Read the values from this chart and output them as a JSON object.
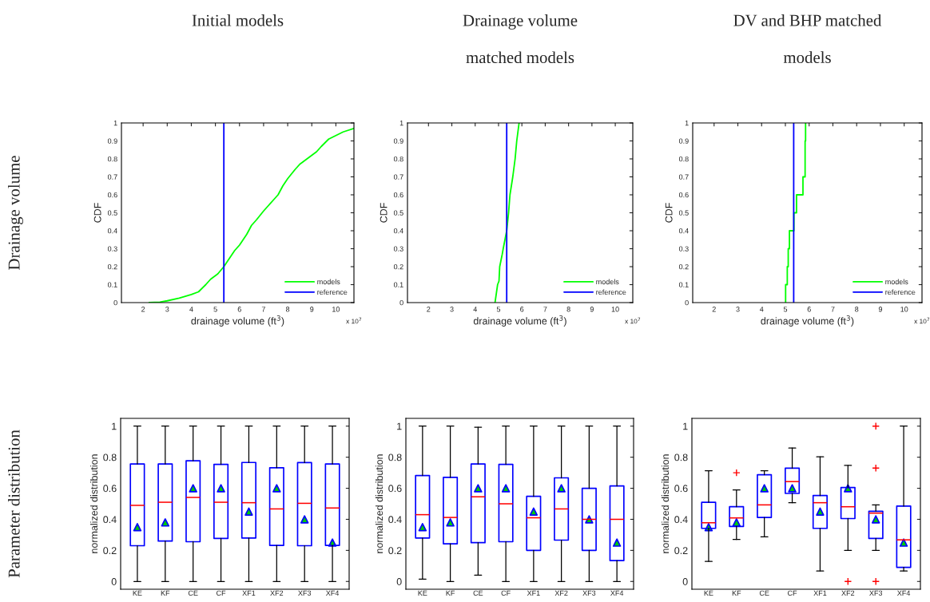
{
  "chart_data": [
    {
      "type": "line",
      "title": "Initial models",
      "xlabel": "drainage volume (ft$^{3}$)",
      "ylabel": "CDF",
      "annotations": [
        "Drainage volume",
        "x 10$^{7}$"
      ],
      "series": [
        {
          "name": "models",
          "color": "#00ff00",
          "x": [
            2.25,
            2.7,
            3,
            3.5,
            4,
            4.3,
            4.6,
            4.8,
            5.1,
            5.35,
            5.6,
            5.8,
            6,
            6.3,
            6.5,
            6.7,
            7,
            7.2,
            7.4,
            7.6,
            7.8,
            8,
            8.3,
            8.5,
            8.8,
            9,
            9.2,
            9.4,
            9.7,
            10,
            10.3,
            10.75
          ],
          "values": [
            0,
            0.003,
            0.01,
            0.025,
            0.045,
            0.06,
            0.1,
            0.13,
            0.16,
            0.2,
            0.25,
            0.29,
            0.32,
            0.38,
            0.43,
            0.46,
            0.51,
            0.54,
            0.57,
            0.6,
            0.65,
            0.69,
            0.74,
            0.77,
            0.8,
            0.82,
            0.84,
            0.87,
            0.91,
            0.93,
            0.95,
            0.97
          ]
        },
        {
          "type": "line",
          "name": "reference",
          "color": "#0000ff",
          "x": [
            5.35,
            5.35
          ],
          "values": [
            0,
            1
          ]
        }
      ],
      "xlim": [
        1.1,
        10.75
      ],
      "xticks": [
        2,
        3,
        4,
        5,
        6,
        7,
        8,
        9,
        10
      ],
      "ylim": [
        0,
        1
      ],
      "yticks": [
        0,
        0.1,
        0.2,
        0.3,
        0.4,
        0.5,
        0.6,
        0.7,
        0.8,
        0.9,
        1
      ],
      "legend": "bottom right"
    },
    {
      "type": "line",
      "title": "Drainage volume\nmatched models",
      "xlabel": "drainage volume (ft$^{3}$)",
      "ylabel": "CDF",
      "annotations": [
        "x 10$^{7}$"
      ],
      "series": [
        {
          "name": "models",
          "color": "#00ff00",
          "x": [
            4.85,
            4.96,
            5.02,
            5.05,
            5.16,
            5.2,
            5.35,
            5.43,
            5.49,
            5.61,
            5.71,
            5.78,
            5.88
          ],
          "values": [
            0,
            0.1,
            0.12,
            0.2,
            0.27,
            0.3,
            0.4,
            0.5,
            0.6,
            0.7,
            0.8,
            0.9,
            1
          ]
        },
        {
          "type": "line",
          "name": "reference",
          "color": "#0000ff",
          "x": [
            5.35,
            5.35
          ],
          "values": [
            0,
            1
          ]
        }
      ],
      "xlim": [
        1.1,
        10.75
      ],
      "xticks": [
        2,
        3,
        4,
        5,
        6,
        7,
        8,
        9,
        10
      ],
      "ylim": [
        0,
        1
      ],
      "yticks": [
        0,
        0.1,
        0.2,
        0.3,
        0.4,
        0.5,
        0.6,
        0.7,
        0.8,
        0.9,
        1
      ],
      "legend": "bottom right"
    },
    {
      "type": "step",
      "title": "DV and BHP matched\nmodels",
      "xlabel": "drainage volume (ft$^{3}$)",
      "ylabel": "CDF",
      "annotations": [
        "x 10$^{7}$"
      ],
      "series": [
        {
          "name": "models",
          "color": "#00ff00",
          "x": [
            5.01,
            5.01,
            5.08,
            5.12,
            5.17,
            5.36,
            5.47,
            5.74,
            5.83,
            5.85
          ],
          "values": [
            0,
            0.1,
            0.2,
            0.3,
            0.4,
            0.5,
            0.6,
            0.7,
            0.9,
            1
          ]
        },
        {
          "type": "line",
          "name": "reference",
          "color": "#0000ff",
          "x": [
            5.35,
            5.35
          ],
          "values": [
            0,
            1
          ]
        }
      ],
      "xlim": [
        1.1,
        10.75
      ],
      "xticks": [
        2,
        3,
        4,
        5,
        6,
        7,
        8,
        9,
        10
      ],
      "ylim": [
        0,
        1
      ],
      "yticks": [
        0,
        0.1,
        0.2,
        0.3,
        0.4,
        0.5,
        0.6,
        0.7,
        0.8,
        0.9,
        1
      ],
      "legend": "bottom right"
    },
    {
      "type": "box",
      "ylabel": "normalized distribution",
      "annotations": [
        "Parameter distribution"
      ],
      "categories": [
        "KE",
        "KF",
        "CE",
        "CF",
        "XF1",
        "XF2",
        "XF3",
        "XF4"
      ],
      "series": [
        {
          "type": "box",
          "color": "#0000ff",
          "boxes": [
            {
              "low": 0,
              "q1": 0.23,
              "median": 0.49,
              "q3": 0.756,
              "high": 1
            },
            {
              "low": 0,
              "q1": 0.26,
              "median": 0.51,
              "q3": 0.756,
              "high": 1
            },
            {
              "low": 0,
              "q1": 0.256,
              "median": 0.541,
              "q3": 0.777,
              "high": 1
            },
            {
              "low": 0,
              "q1": 0.277,
              "median": 0.51,
              "q3": 0.754,
              "high": 1
            },
            {
              "low": 0,
              "q1": 0.28,
              "median": 0.507,
              "q3": 0.766,
              "high": 1
            },
            {
              "low": 0,
              "q1": 0.232,
              "median": 0.467,
              "q3": 0.732,
              "high": 1
            },
            {
              "low": 0,
              "q1": 0.23,
              "median": 0.503,
              "q3": 0.765,
              "high": 1
            },
            {
              "low": 0,
              "q1": 0.232,
              "median": 0.473,
              "q3": 0.756,
              "high": 1
            }
          ]
        },
        {
          "type": "scatter",
          "color": "#00cc00",
          "marker": "triangle",
          "x": [
            "KE",
            "KF",
            "CE",
            "CF",
            "XF1",
            "XF2",
            "XF3",
            "XF4"
          ],
          "values": [
            0.35,
            0.38,
            0.6,
            0.6,
            0.45,
            0.6,
            0.4,
            0.25
          ]
        }
      ],
      "ylim": [
        -0.05,
        1.05
      ],
      "yticks": [
        0,
        0.2,
        0.4,
        0.6,
        0.8,
        1
      ]
    },
    {
      "type": "box",
      "ylabel": "normalized distribution",
      "categories": [
        "KE",
        "KF",
        "CE",
        "CF",
        "XF1",
        "XF2",
        "XF3",
        "XF4"
      ],
      "series": [
        {
          "type": "box",
          "color": "#0000ff",
          "boxes": [
            {
              "low": 0.015,
              "q1": 0.28,
              "median": 0.43,
              "q3": 0.682,
              "high": 1
            },
            {
              "low": 0,
              "q1": 0.242,
              "median": 0.412,
              "q3": 0.67,
              "high": 1
            },
            {
              "low": 0.04,
              "q1": 0.25,
              "median": 0.545,
              "q3": 0.756,
              "high": 0.993
            },
            {
              "low": 0,
              "q1": 0.256,
              "median": 0.5,
              "q3": 0.754,
              "high": 1
            },
            {
              "low": 0,
              "q1": 0.2,
              "median": 0.41,
              "q3": 0.548,
              "high": 1
            },
            {
              "low": 0,
              "q1": 0.266,
              "median": 0.467,
              "q3": 0.667,
              "high": 1
            },
            {
              "low": 0,
              "q1": 0.2,
              "median": 0.4,
              "q3": 0.6,
              "high": 1
            },
            {
              "low": 0,
              "q1": 0.134,
              "median": 0.4,
              "q3": 0.615,
              "high": 1
            }
          ]
        },
        {
          "type": "scatter",
          "color": "#00cc00",
          "marker": "triangle",
          "x": [
            "KE",
            "KF",
            "CE",
            "CF",
            "XF1",
            "XF2",
            "XF3",
            "XF4"
          ],
          "values": [
            0.35,
            0.38,
            0.6,
            0.6,
            0.45,
            0.6,
            0.4,
            0.25
          ]
        }
      ],
      "ylim": [
        -0.05,
        1.05
      ],
      "yticks": [
        0,
        0.2,
        0.4,
        0.6,
        0.8,
        1
      ]
    },
    {
      "type": "box",
      "ylabel": "normalized distribution",
      "categories": [
        "KE",
        "KF",
        "CE",
        "CF",
        "XF1",
        "XF2",
        "XF3",
        "XF4"
      ],
      "series": [
        {
          "type": "box",
          "color": "#0000ff",
          "boxes": [
            {
              "low": 0.129,
              "q1": 0.342,
              "median": 0.378,
              "q3": 0.51,
              "high": 0.713
            },
            {
              "low": 0.27,
              "q1": 0.354,
              "median": 0.409,
              "q3": 0.481,
              "high": 0.589,
              "outliers": [
                0.7
              ]
            },
            {
              "low": 0.287,
              "q1": 0.412,
              "median": 0.493,
              "q3": 0.687,
              "high": 0.713
            },
            {
              "low": 0.507,
              "q1": 0.567,
              "median": 0.643,
              "q3": 0.729,
              "high": 0.859
            },
            {
              "low": 0.067,
              "q1": 0.342,
              "median": 0.507,
              "q3": 0.553,
              "high": 0.802
            },
            {
              "low": 0.2,
              "q1": 0.405,
              "median": 0.481,
              "q3": 0.605,
              "high": 0.747,
              "outliers": [
                0
              ]
            },
            {
              "low": 0.2,
              "q1": 0.277,
              "median": 0.44,
              "q3": 0.452,
              "high": 0.493,
              "outliers": [
                0,
                0.73,
                1
              ]
            },
            {
              "low": 0.067,
              "q1": 0.091,
              "median": 0.268,
              "q3": 0.485,
              "high": 1
            }
          ]
        },
        {
          "type": "scatter",
          "color": "#00cc00",
          "marker": "triangle",
          "x": [
            "KE",
            "KF",
            "CE",
            "CF",
            "XF1",
            "XF2",
            "XF3",
            "XF4"
          ],
          "values": [
            0.35,
            0.38,
            0.6,
            0.6,
            0.45,
            0.6,
            0.4,
            0.25
          ]
        }
      ],
      "ylim": [
        -0.05,
        1.05
      ],
      "yticks": [
        0,
        0.2,
        0.4,
        0.6,
        0.8,
        1
      ]
    }
  ]
}
